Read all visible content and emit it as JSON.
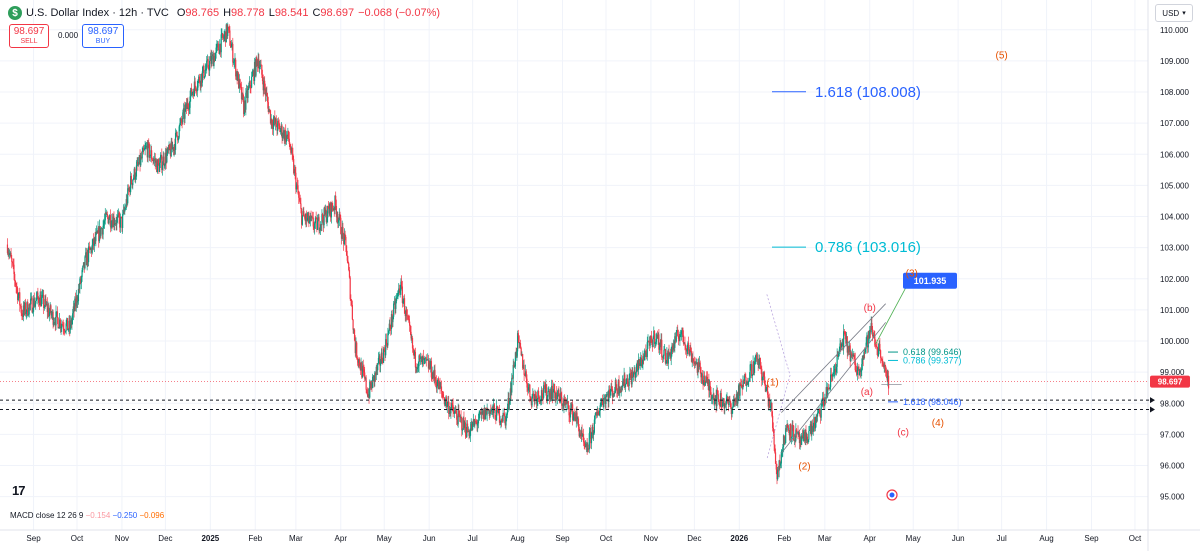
{
  "header": {
    "symbol_title": "U.S. Dollar Index · 12h · TVC",
    "open_label": "O",
    "open": "98.765",
    "high_label": "H",
    "high": "98.778",
    "low_label": "L",
    "low": "98.541",
    "close_label": "C",
    "close": "98.697",
    "change": "−0.068 (−0.07%)"
  },
  "trade": {
    "sell_price": "98.697",
    "sell_label": "SELL",
    "spread": "0.000",
    "buy_price": "98.697",
    "buy_label": "BUY"
  },
  "currency_button": "USD",
  "macd": {
    "label": "MACD close 12 26 9",
    "histogram": "−0.154",
    "macd": "−0.250",
    "signal": "−0.096"
  },
  "colors": {
    "up": "#089981",
    "down": "#f23645",
    "fib_blue": "#2962ff",
    "fib_cyan": "#00bcd4",
    "wave_orange": "#e65100",
    "wave_red": "#f23645",
    "channel": "#b2b5be",
    "price_line": "#f23645"
  },
  "chart_data": {
    "type": "candlestick",
    "timeframe": "12h",
    "x_ticks": [
      {
        "date": "2024-09-01",
        "label": "Sep"
      },
      {
        "date": "2024-10-01",
        "label": "Oct"
      },
      {
        "date": "2024-11-01",
        "label": "Nov"
      },
      {
        "date": "2024-12-01",
        "label": "Dec"
      },
      {
        "date": "2025-01-01",
        "label": "2025"
      },
      {
        "date": "2025-02-01",
        "label": "Feb"
      },
      {
        "date": "2025-03-01",
        "label": "Mar"
      },
      {
        "date": "2025-04-01",
        "label": "Apr"
      },
      {
        "date": "2025-05-01",
        "label": "May"
      },
      {
        "date": "2025-06-01",
        "label": "Jun"
      },
      {
        "date": "2025-07-01",
        "label": "Jul"
      },
      {
        "date": "2025-08-01",
        "label": "Aug"
      },
      {
        "date": "2025-09-01",
        "label": "Sep"
      },
      {
        "date": "2025-10-01",
        "label": "Oct"
      },
      {
        "date": "2025-11-01",
        "label": "Nov"
      },
      {
        "date": "2025-12-01",
        "label": "Dec"
      },
      {
        "date": "2026-01-01",
        "label": "2026"
      },
      {
        "date": "2026-02-01",
        "label": "Feb"
      },
      {
        "date": "2026-03-01",
        "label": "Mar"
      },
      {
        "date": "2026-04-01",
        "label": "Apr"
      },
      {
        "date": "2026-05-01",
        "label": "May"
      },
      {
        "date": "2026-06-01",
        "label": "Jun"
      },
      {
        "date": "2026-07-01",
        "label": "Jul"
      },
      {
        "date": "2026-08-01",
        "label": "Aug"
      },
      {
        "date": "2026-09-01",
        "label": "Sep"
      },
      {
        "date": "2026-10-01",
        "label": "Oct"
      }
    ],
    "y_ticks": [
      "95.000",
      "96.000",
      "97.000",
      "98.000",
      "99.000",
      "100.000",
      "101.000",
      "102.000",
      "103.000",
      "104.000",
      "105.000",
      "106.000",
      "107.000",
      "108.000",
      "109.000",
      "110.000"
    ],
    "y_range": [
      94.7,
      110.25
    ],
    "x_range": [
      "2024-08-13",
      "2026-10-10"
    ],
    "price_path": [
      [
        "2024-08-14",
        103.1
      ],
      [
        "2024-08-24",
        100.9
      ],
      [
        "2024-09-05",
        101.4
      ],
      [
        "2024-09-14",
        100.8
      ],
      [
        "2024-09-26",
        100.4
      ],
      [
        "2024-10-07",
        102.6
      ],
      [
        "2024-10-22",
        104.0
      ],
      [
        "2024-11-01",
        103.8
      ],
      [
        "2024-11-07",
        105.1
      ],
      [
        "2024-11-18",
        106.2
      ],
      [
        "2024-11-26",
        105.6
      ],
      [
        "2024-12-06",
        106.2
      ],
      [
        "2024-12-20",
        108.1
      ],
      [
        "2025-01-03",
        109.1
      ],
      [
        "2025-01-13",
        110.0
      ],
      [
        "2025-01-24",
        107.5
      ],
      [
        "2025-02-03",
        109.1
      ],
      [
        "2025-02-12",
        107.1
      ],
      [
        "2025-02-24",
        106.5
      ],
      [
        "2025-03-05",
        104.0
      ],
      [
        "2025-03-15",
        103.7
      ],
      [
        "2025-03-28",
        104.4
      ],
      [
        "2025-04-05",
        102.9
      ],
      [
        "2025-04-11",
        99.8
      ],
      [
        "2025-04-20",
        98.3
      ],
      [
        "2025-05-01",
        99.7
      ],
      [
        "2025-05-12",
        101.8
      ],
      [
        "2025-05-22",
        99.4
      ],
      [
        "2025-06-01",
        99.2
      ],
      [
        "2025-06-13",
        98.0
      ],
      [
        "2025-06-28",
        97.1
      ],
      [
        "2025-07-12",
        97.8
      ],
      [
        "2025-07-24",
        97.5
      ],
      [
        "2025-08-01",
        100.0
      ],
      [
        "2025-08-10",
        98.2
      ],
      [
        "2025-08-25",
        98.4
      ],
      [
        "2025-09-10",
        97.6
      ],
      [
        "2025-09-17",
        96.4
      ],
      [
        "2025-09-28",
        98.1
      ],
      [
        "2025-10-08",
        98.5
      ],
      [
        "2025-10-20",
        98.9
      ],
      [
        "2025-11-04",
        100.2
      ],
      [
        "2025-11-12",
        99.4
      ],
      [
        "2025-11-21",
        100.3
      ],
      [
        "2025-12-05",
        99.0
      ],
      [
        "2025-12-15",
        98.2
      ],
      [
        "2025-12-27",
        97.9
      ],
      [
        "2026-01-09",
        99.1
      ],
      [
        "2026-01-14",
        99.4
      ],
      [
        "2026-01-23",
        97.8
      ],
      [
        "2026-01-27",
        95.7
      ],
      [
        "2026-02-03",
        97.3
      ],
      [
        "2026-02-13",
        96.7
      ],
      [
        "2026-02-24",
        97.5
      ],
      [
        "2026-03-05",
        98.7
      ],
      [
        "2026-03-14",
        100.1
      ],
      [
        "2026-03-24",
        99.0
      ],
      [
        "2026-04-02",
        100.4
      ],
      [
        "2026-04-06",
        99.8
      ],
      [
        "2026-04-09",
        99.6
      ],
      [
        "2026-04-13",
        98.6
      ],
      [
        "2026-04-14",
        98.697
      ]
    ],
    "last_price": "98.697",
    "price_line_label": "98.697",
    "target_label": "101.935",
    "target_price": 101.935,
    "fib_levels": [
      {
        "label": "1.618 (108.008)",
        "price": 108.008,
        "color": "#2962ff",
        "size": "large"
      },
      {
        "label": "0.786 (103.016)",
        "price": 103.016,
        "color": "#00bcd4",
        "size": "large"
      },
      {
        "label": "0.618 (99.646)",
        "price": 99.646,
        "color": "#009688",
        "size": "small"
      },
      {
        "label": "0.786 (99.377)",
        "price": 99.377,
        "color": "#00bcd4",
        "size": "small"
      },
      {
        "label": "1.618 (98.046)",
        "price": 98.046,
        "color": "#2962ff",
        "size": "small"
      }
    ],
    "waves": [
      {
        "label": "(1)",
        "date": "2026-01-24",
        "price": 98.7,
        "color": "#e65100"
      },
      {
        "label": "(2)",
        "date": "2026-02-15",
        "price": 96.0,
        "color": "#e65100"
      },
      {
        "label": "(3)",
        "date": "2026-04-30",
        "price": 102.2,
        "color": "#e65100"
      },
      {
        "label": "(4)",
        "date": "2026-05-18",
        "price": 97.4,
        "color": "#e65100"
      },
      {
        "label": "(5)",
        "date": "2026-07-01",
        "price": 109.2,
        "color": "#e65100"
      },
      {
        "label": "(a)",
        "date": "2026-03-30",
        "price": 98.4,
        "color": "#f23645"
      },
      {
        "label": "(b)",
        "date": "2026-04-01",
        "price": 101.1,
        "color": "#f23645"
      },
      {
        "label": "(c)",
        "date": "2026-04-24",
        "price": 97.1,
        "color": "#f23645"
      }
    ],
    "dashed_levels": [
      98.1,
      97.8
    ]
  }
}
